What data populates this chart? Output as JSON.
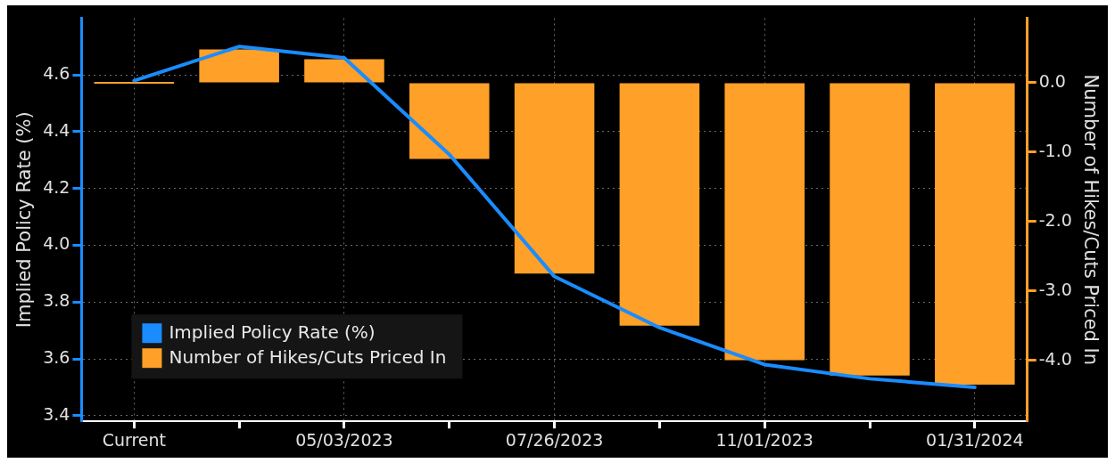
{
  "chart_data": {
    "type": "bar",
    "categories": [
      "Current",
      null,
      "05/03/2023",
      null,
      "07/26/2023",
      null,
      "11/01/2023",
      null,
      "01/31/2024"
    ],
    "series": [
      {
        "name": "Implied Policy Rate (%)",
        "type": "line",
        "color": "#1a8cff",
        "values": [
          4.58,
          4.7,
          4.66,
          4.32,
          3.89,
          3.71,
          3.58,
          3.53,
          3.5
        ]
      },
      {
        "name": "Number of Hikes/Cuts Priced In",
        "axis": "y2",
        "color": "#ffa028",
        "values": [
          0.0,
          0.48,
          0.34,
          -1.1,
          -2.75,
          -3.5,
          -4.0,
          -4.22,
          -4.35
        ]
      }
    ],
    "ylabel": "Implied Policy Rate (%)",
    "y2label": "Number of Hikes/Cuts Priced In",
    "ylim": [
      3.38,
      4.8
    ],
    "yticks": [
      {
        "value": 3.4,
        "label": "3.4"
      },
      {
        "value": 3.6,
        "label": "3.6"
      },
      {
        "value": 3.8,
        "label": "3.8"
      },
      {
        "value": 4.0,
        "label": "4.0"
      },
      {
        "value": 4.2,
        "label": "4.2"
      },
      {
        "value": 4.4,
        "label": "4.4"
      },
      {
        "value": 4.6,
        "label": "4.6"
      }
    ],
    "y2lim": [
      -4.88,
      0.93
    ],
    "y2ticks": [
      {
        "value": -4,
        "label": "-4.0"
      },
      {
        "value": -3,
        "label": "-3.0"
      },
      {
        "value": -2,
        "label": "-2.0"
      },
      {
        "value": -1,
        "label": "-1.0"
      },
      {
        "value": 0,
        "label": "0.0"
      }
    ],
    "grid": true,
    "legend": "bottom left",
    "marker": "none",
    "line_style": "solid"
  }
}
